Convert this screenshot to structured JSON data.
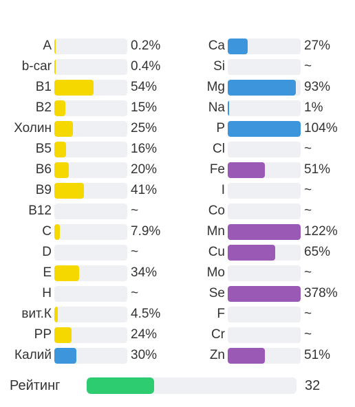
{
  "colors": {
    "yellow": "#f5d800",
    "blue": "#3d95dc",
    "purple": "#9b59b6",
    "green": "#2ecc71",
    "track": "#eef0f3"
  },
  "left": [
    {
      "label": "A",
      "value": "0.2%",
      "fraction": 0.002,
      "color": "yellow"
    },
    {
      "label": "b-car",
      "value": "0.4%",
      "fraction": 0.004,
      "color": "yellow"
    },
    {
      "label": "B1",
      "value": "54%",
      "fraction": 0.54,
      "color": "yellow"
    },
    {
      "label": "B2",
      "value": "15%",
      "fraction": 0.15,
      "color": "yellow"
    },
    {
      "label": "Холин",
      "value": "25%",
      "fraction": 0.25,
      "color": "yellow"
    },
    {
      "label": "B5",
      "value": "16%",
      "fraction": 0.16,
      "color": "yellow"
    },
    {
      "label": "B6",
      "value": "20%",
      "fraction": 0.2,
      "color": "yellow"
    },
    {
      "label": "B9",
      "value": "41%",
      "fraction": 0.41,
      "color": "yellow"
    },
    {
      "label": "B12",
      "value": "~",
      "fraction": 0,
      "color": "yellow"
    },
    {
      "label": "C",
      "value": "7.9%",
      "fraction": 0.079,
      "color": "yellow"
    },
    {
      "label": "D",
      "value": "~",
      "fraction": 0,
      "color": "yellow"
    },
    {
      "label": "E",
      "value": "34%",
      "fraction": 0.34,
      "color": "yellow"
    },
    {
      "label": "H",
      "value": "~",
      "fraction": 0,
      "color": "yellow"
    },
    {
      "label": "вит.К",
      "value": "4.5%",
      "fraction": 0.045,
      "color": "yellow"
    },
    {
      "label": "PP",
      "value": "24%",
      "fraction": 0.24,
      "color": "yellow"
    },
    {
      "label": "Калий",
      "value": "30%",
      "fraction": 0.3,
      "color": "blue"
    }
  ],
  "right": [
    {
      "label": "Ca",
      "value": "27%",
      "fraction": 0.27,
      "color": "blue"
    },
    {
      "label": "Si",
      "value": "~",
      "fraction": 0,
      "color": "blue"
    },
    {
      "label": "Mg",
      "value": "93%",
      "fraction": 0.93,
      "color": "blue"
    },
    {
      "label": "Na",
      "value": "1%",
      "fraction": 0.01,
      "color": "blue"
    },
    {
      "label": "P",
      "value": "104%",
      "fraction": 1.04,
      "color": "blue"
    },
    {
      "label": "Cl",
      "value": "~",
      "fraction": 0,
      "color": "blue"
    },
    {
      "label": "Fe",
      "value": "51%",
      "fraction": 0.51,
      "color": "purple"
    },
    {
      "label": "I",
      "value": "~",
      "fraction": 0,
      "color": "purple"
    },
    {
      "label": "Co",
      "value": "~",
      "fraction": 0,
      "color": "purple"
    },
    {
      "label": "Mn",
      "value": "122%",
      "fraction": 1.22,
      "color": "purple"
    },
    {
      "label": "Cu",
      "value": "65%",
      "fraction": 0.65,
      "color": "purple"
    },
    {
      "label": "Mo",
      "value": "~",
      "fraction": 0,
      "color": "purple"
    },
    {
      "label": "Se",
      "value": "378%",
      "fraction": 3.78,
      "color": "purple"
    },
    {
      "label": "F",
      "value": "~",
      "fraction": 0,
      "color": "purple"
    },
    {
      "label": "Cr",
      "value": "~",
      "fraction": 0,
      "color": "purple"
    },
    {
      "label": "Zn",
      "value": "51%",
      "fraction": 0.51,
      "color": "purple"
    }
  ],
  "rating": {
    "label": "Рейтинг",
    "value": "32",
    "fraction": 0.32,
    "color": "green"
  }
}
